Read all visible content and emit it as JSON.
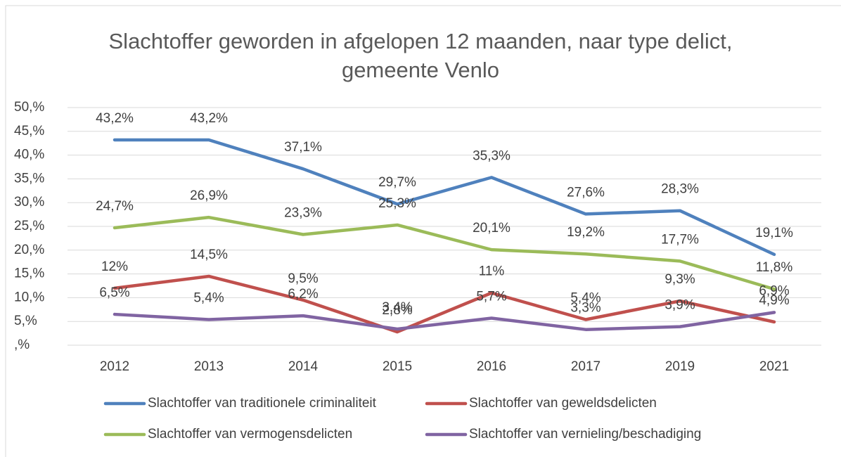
{
  "chart_data": {
    "type": "line",
    "title": "Slachtoffer geworden in afgelopen 12 maanden, naar type delict, gemeente Venlo",
    "categories": [
      "2012",
      "2013",
      "2014",
      "2015",
      "2016",
      "2017",
      "2019",
      "2021"
    ],
    "series": [
      {
        "name": "Slachtoffer van traditionele criminaliteit",
        "color": "#4f81bd",
        "values": [
          43.2,
          43.2,
          37.1,
          29.7,
          35.3,
          27.6,
          28.3,
          19.1
        ],
        "value_labels": [
          "43,2%",
          "43,2%",
          "37,1%",
          "29,7%",
          "35,3%",
          "27,6%",
          "28,3%",
          "19,1%"
        ]
      },
      {
        "name": "Slachtoffer van geweldsdelicten",
        "color": "#c0504d",
        "values": [
          12,
          14.5,
          9.5,
          2.8,
          11,
          5.4,
          9.3,
          4.9
        ],
        "value_labels": [
          "12%",
          "14,5%",
          "9,5%",
          "2,8%",
          "11%",
          "5,4%",
          "9,3%",
          "4,9%"
        ]
      },
      {
        "name": "Slachtoffer van vermogensdelicten",
        "color": "#9bbb59",
        "values": [
          24.7,
          26.9,
          23.3,
          25.3,
          20.1,
          19.2,
          17.7,
          11.8
        ],
        "value_labels": [
          "24,7%",
          "26,9%",
          "23,3%",
          "25,3%",
          "20,1%",
          "19,2%",
          "17,7%",
          "11,8%"
        ]
      },
      {
        "name": "Slachtoffer van vernieling/beschadiging",
        "color": "#8064a2",
        "values": [
          6.5,
          5.4,
          6.2,
          3.4,
          5.7,
          3.3,
          3.9,
          6.9
        ],
        "value_labels": [
          "6,5%",
          "5,4%",
          "6,2%",
          "3,4%",
          "5,7%",
          "3,3%",
          "3,9%",
          "6,9%"
        ]
      }
    ],
    "ylim": [
      0,
      50
    ],
    "yticks": [
      {
        "value": 0,
        "label": ",%"
      },
      {
        "value": 5,
        "label": "5,%"
      },
      {
        "value": 10,
        "label": "10,%"
      },
      {
        "value": 15,
        "label": "15,%"
      },
      {
        "value": 20,
        "label": "20,%"
      },
      {
        "value": 25,
        "label": "25,%"
      },
      {
        "value": 30,
        "label": "30,%"
      },
      {
        "value": 35,
        "label": "35,%"
      },
      {
        "value": 40,
        "label": "40,%"
      },
      {
        "value": 45,
        "label": "45,%"
      },
      {
        "value": 50,
        "label": "50,%"
      }
    ],
    "grid": true
  }
}
